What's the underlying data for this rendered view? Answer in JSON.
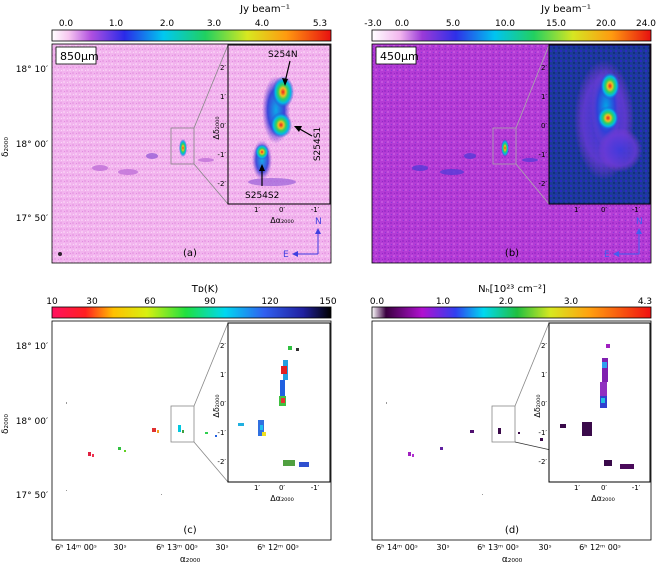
{
  "figure": {
    "panels": [
      {
        "id": "a",
        "label": "(a)",
        "band": "850μm",
        "colorbar": {
          "title": "Jy beam⁻¹",
          "ticks": [
            "0.0",
            "1.0",
            "2.0",
            "3.0",
            "4.0",
            "5.3"
          ],
          "min": 0.0,
          "max": 5.3,
          "cmap": "rainbow"
        },
        "yaxis": {
          "label": "δ₂₀₀₀",
          "ticks": [
            "18° 10′",
            "18° 00′",
            "17° 50′"
          ]
        },
        "inset": {
          "xlabel": "Δα₂₀₀₀",
          "ylabel": "Δδ₂₀₀₀",
          "xticks": [
            "1′",
            "0′",
            "-1′"
          ],
          "yticks": [
            "2′",
            "1′",
            "0′",
            "-1′",
            "-2′"
          ],
          "sources": [
            "S254N",
            "S254S1",
            "S254S2"
          ]
        },
        "compass": {
          "north": "N",
          "east": "E"
        }
      },
      {
        "id": "b",
        "label": "(b)",
        "band": "450μm",
        "colorbar": {
          "title": "Jy beam⁻¹",
          "ticks": [
            "-3.0",
            "0.0",
            "5.0",
            "10.0",
            "15.0",
            "20.0",
            "24.0"
          ],
          "min": -3.0,
          "max": 24.0,
          "cmap": "rainbow"
        },
        "inset": {
          "xticks": [
            "1′",
            "0′",
            "-1′"
          ],
          "yticks": [
            "2′",
            "1′",
            "0′",
            "-1′",
            "-2′"
          ]
        },
        "compass": {
          "north": "N",
          "east": "E"
        }
      },
      {
        "id": "c",
        "label": "(c)",
        "colorbar": {
          "title": "Tᴅ(K)",
          "ticks": [
            "10",
            "30",
            "60",
            "90",
            "120",
            "150"
          ],
          "min": 10,
          "max": 150,
          "cmap": "jet"
        },
        "yaxis": {
          "label": "δ₂₀₀₀",
          "ticks": [
            "18° 10′",
            "18° 00′",
            "17° 50′"
          ]
        },
        "xaxis": {
          "label": "α₂₀₀₀",
          "ticks": [
            "6ʰ 14ᵐ 00ˢ",
            "30ˢ",
            "6ʰ 13ᵐ 00ˢ",
            "30ˢ",
            "6ʰ 12ᵐ 00ˢ"
          ]
        },
        "inset": {
          "xlabel": "Δα₂₀₀₀",
          "ylabel": "Δδ₂₀₀₀",
          "xticks": [
            "1′",
            "0′",
            "-1′"
          ],
          "yticks": [
            "2′",
            "1′",
            "0′",
            "-1′",
            "-2′"
          ]
        }
      },
      {
        "id": "d",
        "label": "(d)",
        "colorbar": {
          "title": "Nₕ[10²³ cm⁻²]",
          "ticks": [
            "0.0",
            "1.0",
            "2.0",
            "3.0",
            "4.3"
          ],
          "min": 0.0,
          "max": 4.3,
          "cmap": "gist_ncar"
        },
        "xaxis": {
          "label": "α₂₀₀₀",
          "ticks": [
            "6ʰ 14ᵐ 00ˢ",
            "30ˢ",
            "6ʰ 13ᵐ 00ˢ",
            "30ˢ",
            "6ʰ 12ᵐ 00ˢ"
          ]
        },
        "inset": {
          "xlabel": "Δα₂₀₀₀",
          "ylabel": "Δδ₂₀₀₀",
          "xticks": [
            "1′",
            "0′",
            "-1′"
          ],
          "yticks": [
            "2′",
            "1′",
            "0′",
            "-1′",
            "-2′"
          ]
        }
      }
    ]
  }
}
